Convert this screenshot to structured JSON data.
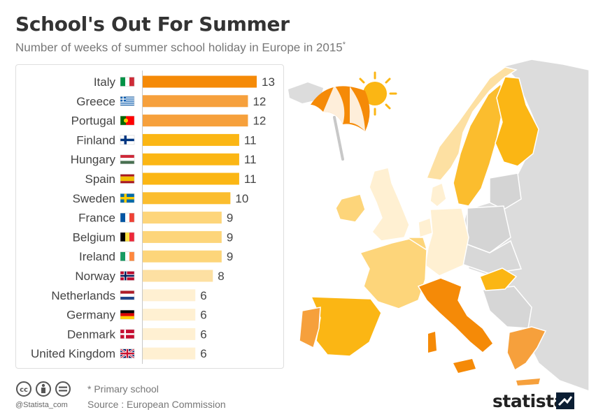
{
  "header": {
    "title": "School's Out For Summer",
    "subtitle": "Number of weeks of summer school holiday in Europe in 2015",
    "subtitle_mark": "*"
  },
  "chart_data": {
    "type": "bar",
    "orientation": "horizontal",
    "categories": [
      "Italy",
      "Greece",
      "Portugal",
      "Finland",
      "Hungary",
      "Spain",
      "Sweden",
      "France",
      "Belgium",
      "Ireland",
      "Norway",
      "Netherlands",
      "Germany",
      "Denmark",
      "United Kingdom"
    ],
    "values": [
      13,
      12,
      12,
      11,
      11,
      11,
      10,
      9,
      9,
      9,
      8,
      6,
      6,
      6,
      6
    ],
    "colors": [
      "#f58a07",
      "#f6a03c",
      "#f6a03c",
      "#fbb614",
      "#fbb614",
      "#fbb614",
      "#fbbd2e",
      "#fdd57a",
      "#fdd57a",
      "#fdd57a",
      "#fde0a2",
      "#fff0d2",
      "#fff0d2",
      "#fff0d2",
      "#fff0d2"
    ],
    "flags": [
      "italy-flag",
      "greece-flag",
      "portugal-flag",
      "finland-flag",
      "hungary-flag",
      "spain-flag",
      "sweden-flag",
      "france-flag",
      "belgium-flag",
      "ireland-flag",
      "norway-flag",
      "netherlands-flag",
      "germany-flag",
      "denmark-flag",
      "united-kingdom-flag"
    ],
    "xlim": [
      0,
      13
    ],
    "grid": false,
    "legend": "none"
  },
  "footer": {
    "handle": "@Statista_com",
    "note": "* Primary school",
    "source": "Source : European Commission",
    "brand": "statista"
  },
  "icons": [
    "umbrella-icon",
    "sun-icon",
    "cc-icon",
    "attribution-icon",
    "no-derivatives-icon",
    "statista-logo-icon"
  ]
}
